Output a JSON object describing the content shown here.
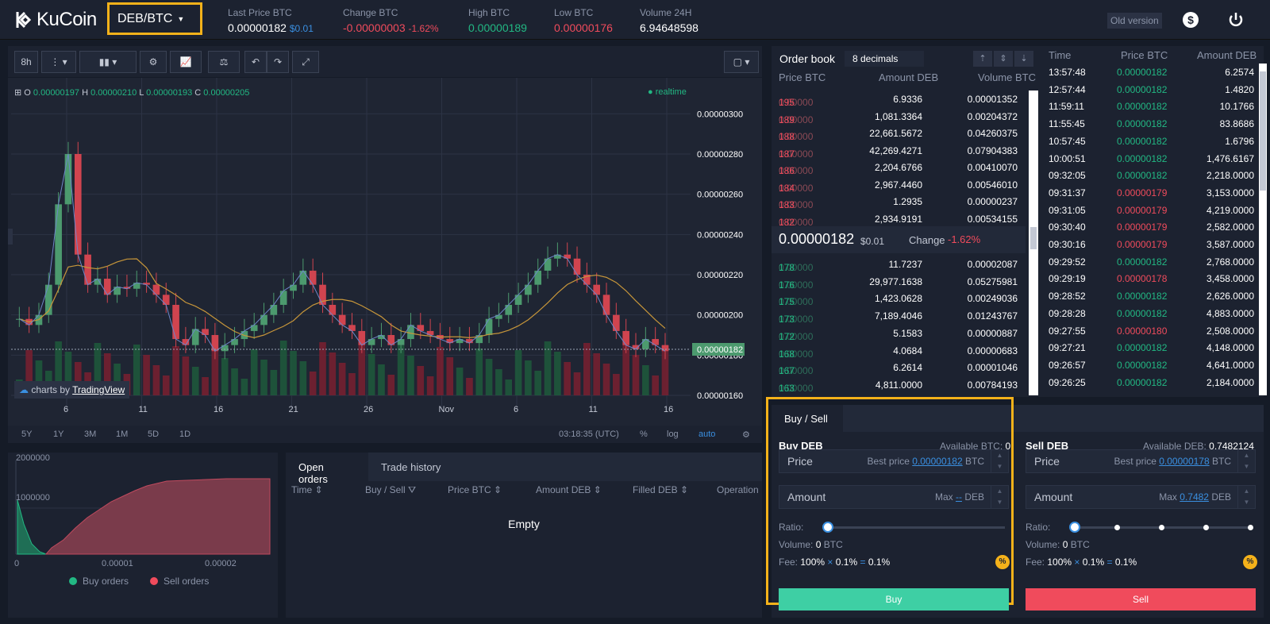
{
  "header": {
    "brand": "KuCoin",
    "pair": "DEB/BTC",
    "stats": [
      {
        "label": "Last Price BTC",
        "value": "0.00000182",
        "extra": "$0.01"
      },
      {
        "label": "Change BTC",
        "value": "-0.00000003",
        "extra": "-1.62%"
      },
      {
        "label": "High BTC",
        "value": "0.00000189"
      },
      {
        "label": "Low BTC",
        "value": "0.00000176"
      },
      {
        "label": "Volume 24H",
        "value": "6.94648598"
      }
    ],
    "old_version": "Old version"
  },
  "chart_toolbar": {
    "interval": "8h"
  },
  "chart_legend": {
    "o_label": "O",
    "o": "0.00000197",
    "h_label": "H",
    "h": "0.00000210",
    "l_label": "L",
    "l": "0.00000193",
    "c_label": "C",
    "c": "0.00000205",
    "realtime": "realtime"
  },
  "chart_attribution": {
    "prefix": "charts by",
    "link": "TradingView"
  },
  "chart_bottom": {
    "ranges": [
      "5Y",
      "1Y",
      "3M",
      "1M",
      "5D",
      "1D"
    ],
    "time": "03:18:35 (UTC)",
    "percent": "%",
    "log": "log",
    "auto": "auto"
  },
  "chart_data": {
    "type": "line",
    "title": "",
    "ylabels": [
      "0.00000300",
      "0.00000280",
      "0.00000260",
      "0.00000240",
      "0.00000220",
      "0.00000200",
      "0.00000180",
      "0.00000160"
    ],
    "xlabels": [
      "6",
      "11",
      "16",
      "21",
      "26",
      "Nov",
      "6",
      "11",
      "16"
    ],
    "last_price_tag": "0.00000182",
    "ylim": [
      1.6e-06,
      3.1e-06
    ],
    "close_series": [
      1.98e-06,
      1.95e-06,
      2e-06,
      2.15e-06,
      2.55e-06,
      2.8e-06,
      2.3e-06,
      2.15e-06,
      2.18e-06,
      2.1e-06,
      2.14e-06,
      2.13e-06,
      2.16e-06,
      2.15e-06,
      2.1e-06,
      2.05e-06,
      1.88e-06,
      1.85e-06,
      1.93e-06,
      1.9e-06,
      1.82e-06,
      1.85e-06,
      1.88e-06,
      1.92e-06,
      1.95e-06,
      2e-06,
      2.05e-06,
      2.12e-06,
      2.15e-06,
      2.22e-06,
      2.15e-06,
      2.05e-06,
      2e-06,
      1.95e-06,
      1.92e-06,
      1.85e-06,
      1.88e-06,
      1.9e-06,
      1.85e-06,
      1.88e-06,
      1.95e-06,
      1.92e-06,
      1.9e-06,
      1.88e-06,
      1.86e-06,
      1.88e-06,
      1.86e-06,
      1.9e-06,
      1.98e-06,
      2e-06,
      2.05e-06,
      2.1e-06,
      2.15e-06,
      2.22e-06,
      2.28e-06,
      2.3e-06,
      2.28e-06,
      2.2e-06,
      2.15e-06,
      2.1e-06,
      2e-06,
      1.92e-06,
      1.85e-06,
      1.83e-06,
      1.88e-06,
      1.85e-06,
      1.82e-06
    ]
  },
  "order_book": {
    "title": "Order book",
    "decimals": "8 decimals",
    "headers": [
      "Price BTC",
      "Amount DEB",
      "Volume BTC"
    ],
    "asks": [
      {
        "p0": "0.00000",
        "p1": "195",
        "amount": "6.9336",
        "volume": "0.00001352"
      },
      {
        "p0": "0.00000",
        "p1": "189",
        "amount": "1,081.3364",
        "volume": "0.00204372"
      },
      {
        "p0": "0.00000",
        "p1": "188",
        "amount": "22,661.5672",
        "volume": "0.04260375"
      },
      {
        "p0": "0.00000",
        "p1": "187",
        "amount": "42,269.4271",
        "volume": "0.07904383"
      },
      {
        "p0": "0.00000",
        "p1": "186",
        "amount": "2,204.6766",
        "volume": "0.00410070"
      },
      {
        "p0": "0.00000",
        "p1": "184",
        "amount": "2,967.4460",
        "volume": "0.00546010"
      },
      {
        "p0": "0.00000",
        "p1": "183",
        "amount": "1.2935",
        "volume": "0.00000237"
      },
      {
        "p0": "0.00000",
        "p1": "182",
        "amount": "2,934.9191",
        "volume": "0.00534155"
      }
    ],
    "mid_price": "0.00000182",
    "mid_usd": "$0.01",
    "change_label": "Change",
    "change": "-1.62%",
    "bids": [
      {
        "p0": "0.00000",
        "p1": "178",
        "amount": "11.7237",
        "volume": "0.00002087"
      },
      {
        "p0": "0.00000",
        "p1": "176",
        "amount": "29,977.1638",
        "volume": "0.05275981"
      },
      {
        "p0": "0.00000",
        "p1": "175",
        "amount": "1,423.0628",
        "volume": "0.00249036"
      },
      {
        "p0": "0.00000",
        "p1": "173",
        "amount": "7,189.4046",
        "volume": "0.01243767"
      },
      {
        "p0": "0.00000",
        "p1": "172",
        "amount": "5.1583",
        "volume": "0.00000887"
      },
      {
        "p0": "0.00000",
        "p1": "168",
        "amount": "4.0684",
        "volume": "0.00000683"
      },
      {
        "p0": "0.00000",
        "p1": "167",
        "amount": "6.2614",
        "volume": "0.00001046"
      },
      {
        "p0": "0.00000",
        "p1": "163",
        "amount": "4,811.0000",
        "volume": "0.00784193"
      }
    ]
  },
  "trade_history": {
    "headers": [
      "Time",
      "Price BTC",
      "Amount DEB"
    ],
    "rows": [
      {
        "time": "13:57:48",
        "price": "0.00000182",
        "amount": "6.2574",
        "side": "buy"
      },
      {
        "time": "12:57:44",
        "price": "0.00000182",
        "amount": "1.4820",
        "side": "buy"
      },
      {
        "time": "11:59:11",
        "price": "0.00000182",
        "amount": "10.1766",
        "side": "buy"
      },
      {
        "time": "11:55:45",
        "price": "0.00000182",
        "amount": "83.8686",
        "side": "buy"
      },
      {
        "time": "10:57:45",
        "price": "0.00000182",
        "amount": "1.6796",
        "side": "buy"
      },
      {
        "time": "10:00:51",
        "price": "0.00000182",
        "amount": "1,476.6167",
        "side": "buy"
      },
      {
        "time": "09:32:05",
        "price": "0.00000182",
        "amount": "2,218.0000",
        "side": "buy"
      },
      {
        "time": "09:31:37",
        "price": "0.00000179",
        "amount": "3,153.0000",
        "side": "sell"
      },
      {
        "time": "09:31:05",
        "price": "0.00000179",
        "amount": "4,219.0000",
        "side": "sell"
      },
      {
        "time": "09:30:40",
        "price": "0.00000179",
        "amount": "2,582.0000",
        "side": "sell"
      },
      {
        "time": "09:30:16",
        "price": "0.00000179",
        "amount": "3,587.0000",
        "side": "sell"
      },
      {
        "time": "09:29:52",
        "price": "0.00000182",
        "amount": "2,768.0000",
        "side": "buy"
      },
      {
        "time": "09:29:19",
        "price": "0.00000178",
        "amount": "3,458.0000",
        "side": "sell"
      },
      {
        "time": "09:28:52",
        "price": "0.00000182",
        "amount": "2,626.0000",
        "side": "buy"
      },
      {
        "time": "09:28:28",
        "price": "0.00000182",
        "amount": "4,883.0000",
        "side": "buy"
      },
      {
        "time": "09:27:55",
        "price": "0.00000180",
        "amount": "2,508.0000",
        "side": "sell"
      },
      {
        "time": "09:27:21",
        "price": "0.00000182",
        "amount": "4,148.0000",
        "side": "buy"
      },
      {
        "time": "09:26:57",
        "price": "0.00000182",
        "amount": "4,641.0000",
        "side": "buy"
      },
      {
        "time": "09:26:25",
        "price": "0.00000182",
        "amount": "2,184.0000",
        "side": "buy"
      }
    ]
  },
  "depth_chart": {
    "y_top": "2000000",
    "y_mid": "1000000",
    "x0": "0",
    "x1": "0.00001",
    "x2": "0.00002",
    "legend_buy": "Buy orders",
    "legend_sell": "Sell orders"
  },
  "orders": {
    "tabs": [
      "Open orders",
      "Trade history"
    ],
    "headers": [
      "Time",
      "Buy / Sell",
      "Price BTC",
      "Amount DEB",
      "Filled DEB",
      "Operation"
    ],
    "empty": "Empty"
  },
  "trade": {
    "tab": "Buy / Sell",
    "buy": {
      "title": "Buy DEB",
      "available_label": "Available BTC:",
      "available": "0",
      "price_label": "Price",
      "best_label": "Best price",
      "best": "0.00000182",
      "best_unit": "BTC",
      "amount_label": "Amount",
      "max_label": "Max",
      "max": "--",
      "max_unit": "DEB",
      "ratio": "Ratio:",
      "volume_label": "Volume:",
      "volume": "0",
      "volume_unit": "BTC",
      "fee_label": "Fee:",
      "fee_a": "100%",
      "fee_b": "0.1%",
      "fee_c": "0.1%",
      "button": "Buy"
    },
    "sell": {
      "title": "Sell DEB",
      "available_label": "Available DEB:",
      "available": "0.7482124",
      "price_label": "Price",
      "best_label": "Best price",
      "best": "0.00000178",
      "best_unit": "BTC",
      "amount_label": "Amount",
      "max_label": "Max",
      "max": "0.7482",
      "max_unit": "DEB",
      "ratio": "Ratio:",
      "volume_label": "Volume:",
      "volume": "0",
      "volume_unit": "BTC",
      "fee_label": "Fee:",
      "fee_a": "100%",
      "fee_b": "0.1%",
      "fee_c": "0.1%",
      "button": "Sell"
    }
  },
  "colors": {
    "green": "#22b883",
    "red": "#f04b5c",
    "accent": "#f5b21a",
    "bg": "#151b27",
    "panel": "#1c2230"
  }
}
